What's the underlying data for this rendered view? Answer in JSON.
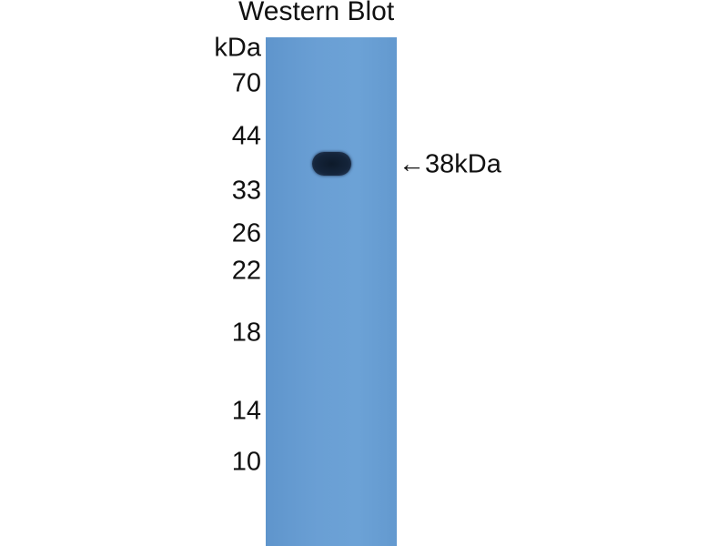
{
  "title": "Western Blot",
  "unit_label": "kDa",
  "markers": [
    "70",
    "44",
    "33",
    "26",
    "22",
    "18",
    "14",
    "10"
  ],
  "band_label": "38kDa",
  "colors": {
    "membrane": "#6a9fd4",
    "band": "#14243a"
  }
}
